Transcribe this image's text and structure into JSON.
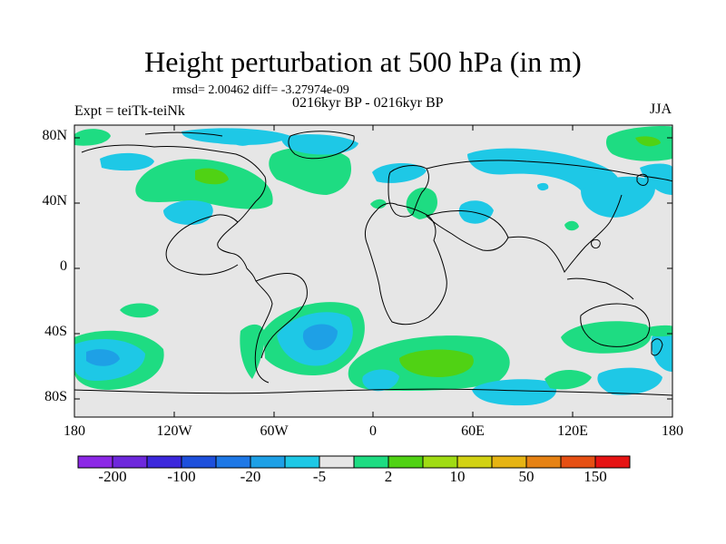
{
  "title": "Height perturbation at 500 hPa (in m)",
  "stats_line": "rmsd= 2.00462  diff= -3.27974e-09",
  "subtitle": "0216kyr BP - 0216kyr BP",
  "experiment_label": "Expt = teiTk-teiNk",
  "season": "JJA",
  "y_ticks": [
    "80N",
    "40N",
    "0",
    "40S",
    "80S"
  ],
  "x_ticks": [
    "180",
    "120W",
    "60W",
    "0",
    "60E",
    "120E",
    "180"
  ],
  "colorbar": {
    "colors": [
      "#8c28e6",
      "#6e28dc",
      "#3c28dc",
      "#1e50dc",
      "#1e78e6",
      "#1ea0e6",
      "#1ec8e6",
      "#e6e6e6",
      "#1edc82",
      "#50d214",
      "#a0dc14",
      "#d2d214",
      "#e6b414",
      "#e68214",
      "#e65014",
      "#e61414"
    ],
    "labels": [
      "-200",
      "-100",
      "-20",
      "-5",
      "2",
      "10",
      "50",
      "150"
    ]
  },
  "colors": {
    "land_background": "#e6e6e6",
    "coastline": "#000000"
  }
}
